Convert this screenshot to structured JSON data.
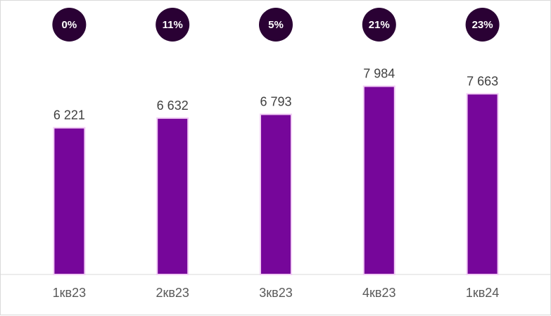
{
  "chart_data": {
    "type": "bar",
    "categories": [
      "1кв23",
      "2кв23",
      "3кв23",
      "4кв23",
      "1кв24"
    ],
    "values": [
      6221,
      6632,
      6793,
      7984,
      7663
    ],
    "value_labels": [
      "6 221",
      "6 632",
      "6 793",
      "7 984",
      "7 663"
    ],
    "growth_badges": [
      "0%",
      "11%",
      "5%",
      "21%",
      "23%"
    ],
    "title": "",
    "xlabel": "",
    "ylabel": "",
    "ylim": [
      0,
      9000
    ],
    "grid": false,
    "legend": "none",
    "colors": {
      "bar": "#76069a",
      "bar_outline": "#f2cdf5",
      "badge": "#2a0134",
      "axis": "#d9d9d9"
    }
  }
}
